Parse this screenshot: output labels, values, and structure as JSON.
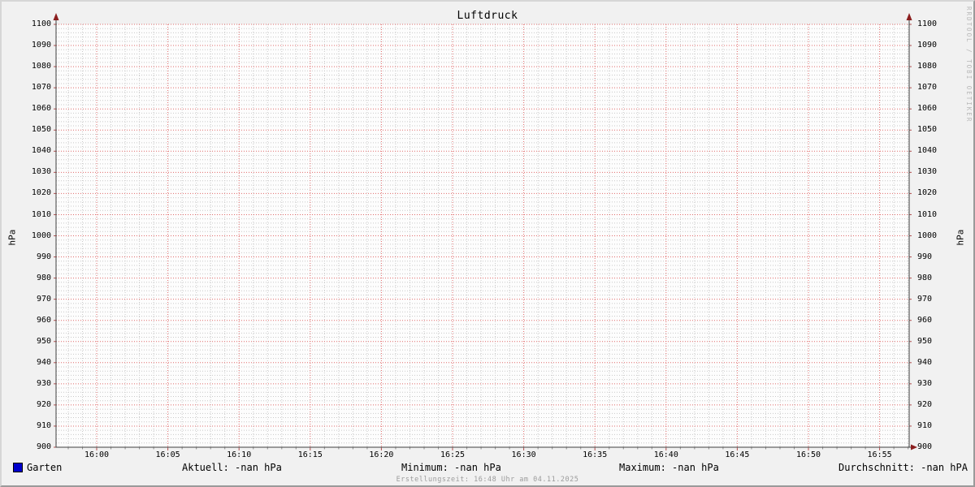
{
  "watermark": "RRDTOOL / TOBI OETIKER",
  "footer": {
    "text": "Erstellungszeit: 16:48 Uhr am 04.11.2025"
  },
  "legend": {
    "series_label": "Garten",
    "swatch_color": "#0000cc",
    "stats": [
      {
        "name": "aktuell",
        "text": "Aktuell: -nan hPa"
      },
      {
        "name": "minimum",
        "text": "Minimum: -nan hPa"
      },
      {
        "name": "maximum",
        "text": "Maximum: -nan hPa"
      },
      {
        "name": "durchschnitt",
        "text": "Durchschnitt: -nan hPA"
      }
    ]
  },
  "chart_data": {
    "type": "line",
    "title": "Luftdruck",
    "xlabel": "",
    "ylabel": "hPa",
    "ylabel_right": "hPa",
    "ylim": [
      900,
      1100
    ],
    "y_tick_step": 10,
    "y_ticks": [
      "1100",
      "1090",
      "1080",
      "1070",
      "1060",
      "1050",
      "1040",
      "1030",
      "1020",
      "1010",
      "1000",
      "990",
      "980",
      "970",
      "960",
      "950",
      "940",
      "930",
      "920",
      "910",
      "900"
    ],
    "x_ticks": [
      "16:00",
      "16:05",
      "16:10",
      "16:15",
      "16:20",
      "16:25",
      "16:30",
      "16:35",
      "16:40",
      "16:45",
      "16:50",
      "16:55"
    ],
    "grid": true,
    "legend_position": "bottom",
    "series": [
      {
        "name": "Garten",
        "color": "#0000cc",
        "values": [],
        "note": "no data plotted (all values -nan)"
      }
    ],
    "stats": {
      "aktuell": "-nan hPa",
      "minimum": "-nan hPa",
      "maximum": "-nan hPa",
      "durchschnitt": "-nan hPA"
    },
    "colors": {
      "background": "#f1f1f1",
      "canvas": "#fdfdfd",
      "major_grid": "#e06a6a",
      "minor_grid": "#c9c9c9",
      "axis": "#3f3f3f",
      "arrow": "#8b1e1e"
    }
  }
}
